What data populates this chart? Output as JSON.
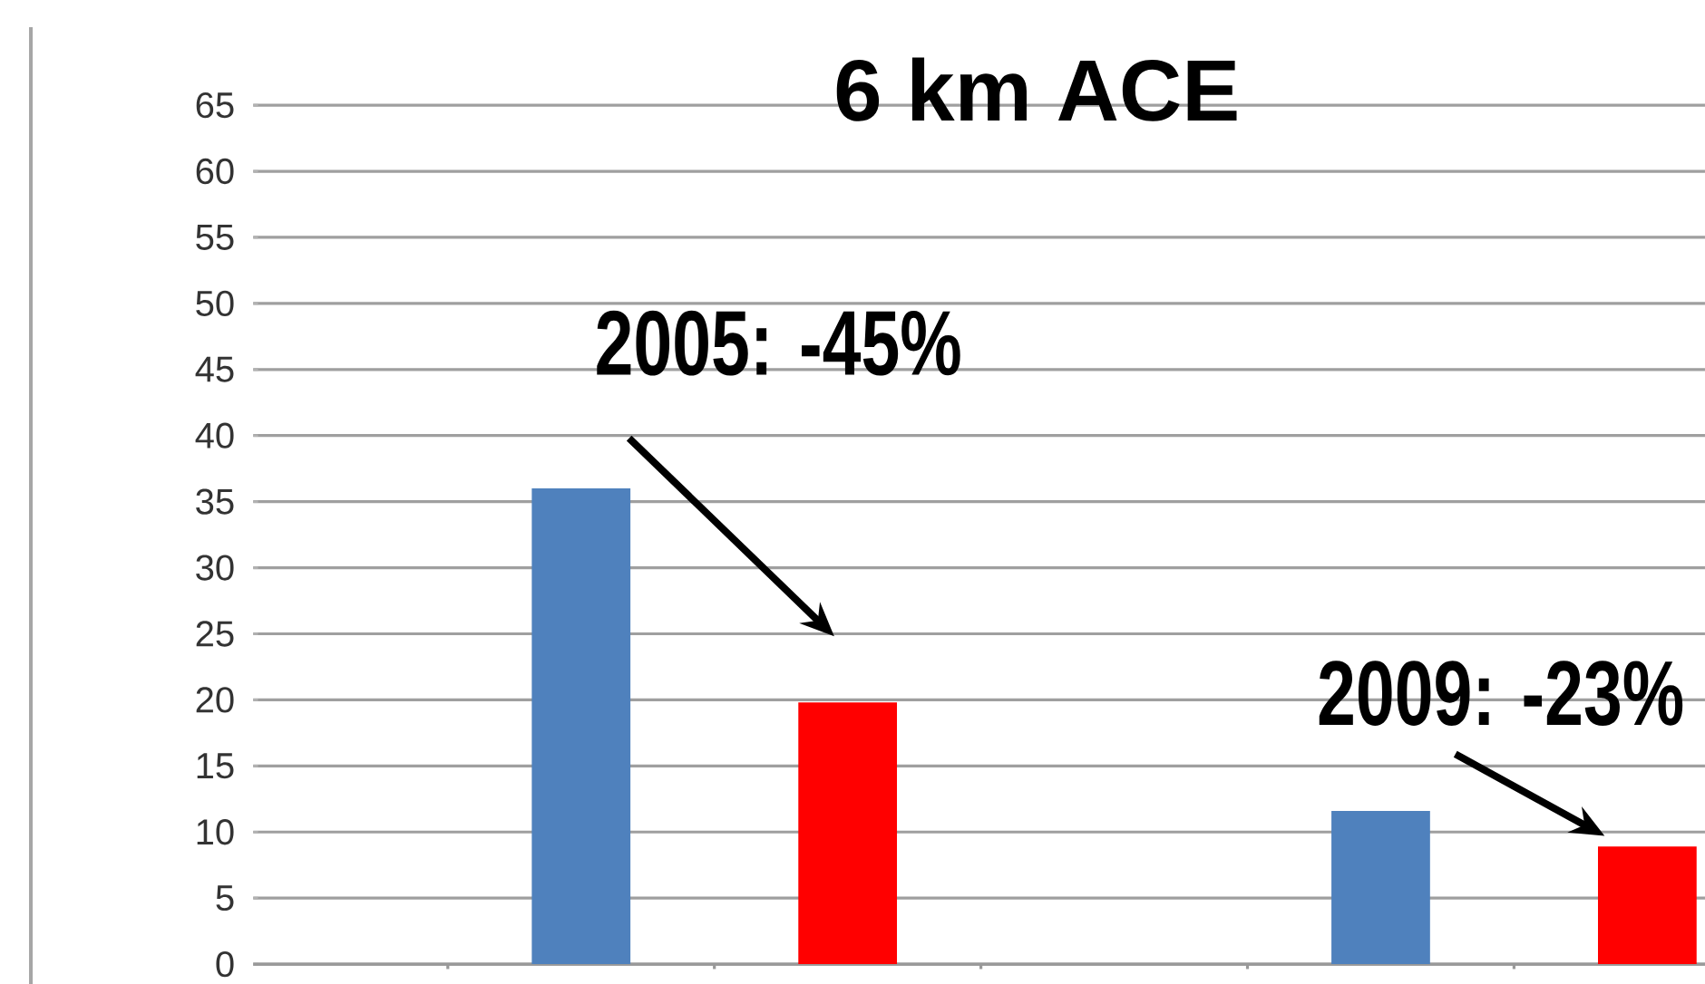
{
  "chart_data": {
    "type": "bar",
    "title": "6 km ACE",
    "categories": [
      null,
      null,
      null,
      null,
      null,
      null
    ],
    "values": [
      null,
      36,
      19.8,
      null,
      11.6,
      8.9
    ],
    "colors": [
      "#4f81bd",
      "#4f81bd",
      "#ff0000",
      "#4f81bd",
      "#4f81bd",
      "#ff0000"
    ],
    "ylim": [
      0,
      65
    ],
    "yticks": [
      0,
      5,
      10,
      15,
      20,
      25,
      30,
      35,
      40,
      45,
      50,
      55,
      60,
      65
    ],
    "grid": "y",
    "annotations": [
      "2005: -45%",
      "2009: -23%"
    ]
  }
}
